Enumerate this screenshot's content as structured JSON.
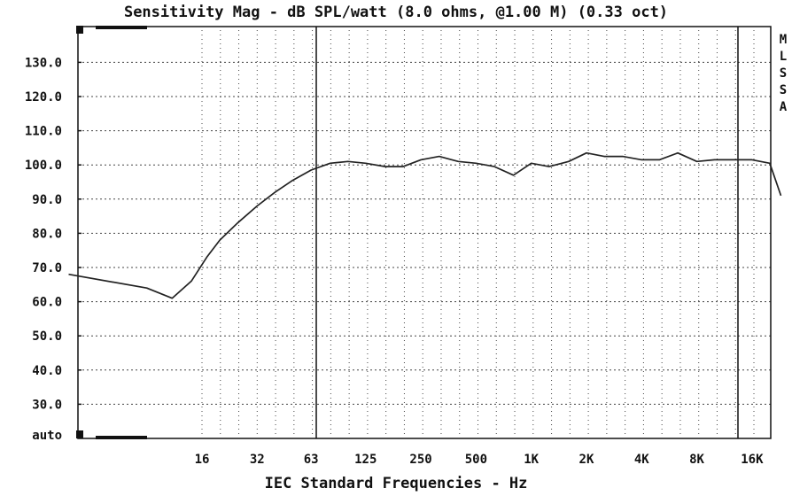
{
  "chart_data": {
    "type": "line",
    "title": "Sensitivity Mag - dB SPL/watt (8.0 ohms, @1.00 M) (0.33 oct)",
    "xlabel": "IEC Standard Frequencies - Hz",
    "ylabel": "",
    "x_scale": "log",
    "x_tick_labels": [
      "16",
      "32",
      "63",
      "125",
      "250",
      "500",
      "1K",
      "2K",
      "4K",
      "8K",
      "16K"
    ],
    "x_tick_values": [
      16,
      32,
      63,
      125,
      250,
      500,
      1000,
      2000,
      4000,
      8000,
      16000
    ],
    "y_tick_labels": [
      "130.0",
      "120.0",
      "110.0",
      "100.0",
      "90.0",
      "80.0",
      "70.0",
      "60.0",
      "50.0",
      "40.0",
      "30.0",
      "auto"
    ],
    "y_tick_values": [
      130,
      120,
      110,
      100,
      90,
      80,
      70,
      60,
      50,
      40,
      30,
      20
    ],
    "ylim": [
      20,
      135
    ],
    "side_labels": [
      "M",
      "L",
      "S",
      "S",
      "A"
    ],
    "grid": true,
    "series": [
      {
        "x": [
          3,
          8,
          11,
          14,
          17,
          20,
          25,
          32,
          40,
          50,
          63,
          80,
          100,
          125,
          160,
          200,
          250,
          315,
          400,
          500,
          630,
          800,
          1000,
          1250,
          1600,
          2000,
          2500,
          3150,
          4000,
          5000,
          6300,
          8000,
          10000,
          12500,
          16000,
          20000,
          23000
        ],
        "y": [
          68,
          64,
          61,
          66,
          73,
          78,
          83,
          88,
          92,
          95.5,
          98.5,
          100.5,
          101,
          100.5,
          99.5,
          99.5,
          101.5,
          102.5,
          101,
          100.5,
          99.5,
          97,
          100.5,
          99.5,
          101,
          103.5,
          102.5,
          102.5,
          101.5,
          101.5,
          103.5,
          101,
          101.5,
          101.5,
          101.5,
          100.5,
          91
        ]
      }
    ]
  }
}
